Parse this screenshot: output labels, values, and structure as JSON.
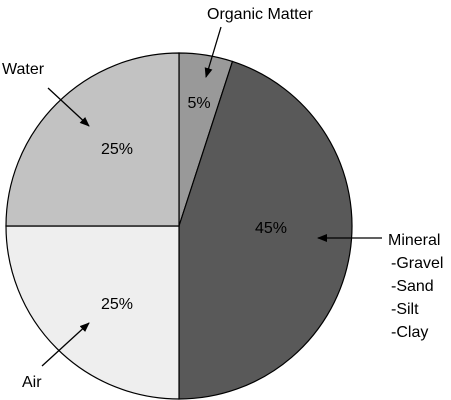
{
  "chart_data": {
    "type": "pie",
    "slices": [
      {
        "label": "Organic Matter",
        "value": 5,
        "value_label": "5%",
        "color": "#999999"
      },
      {
        "label": "Mineral",
        "value": 45,
        "value_label": "45%",
        "color": "#595959",
        "sublabels": [
          "-Gravel",
          "-Sand",
          "-Silt",
          "-Clay"
        ]
      },
      {
        "label": "Air",
        "value": 25,
        "value_label": "25%",
        "color": "#eeeeee"
      },
      {
        "label": "Water",
        "value": 25,
        "value_label": "25%",
        "color": "#c2c2c2"
      }
    ],
    "start_angle": "12 o'clock",
    "direction": "clockwise",
    "legend": "none",
    "outline_color": "#000000"
  }
}
